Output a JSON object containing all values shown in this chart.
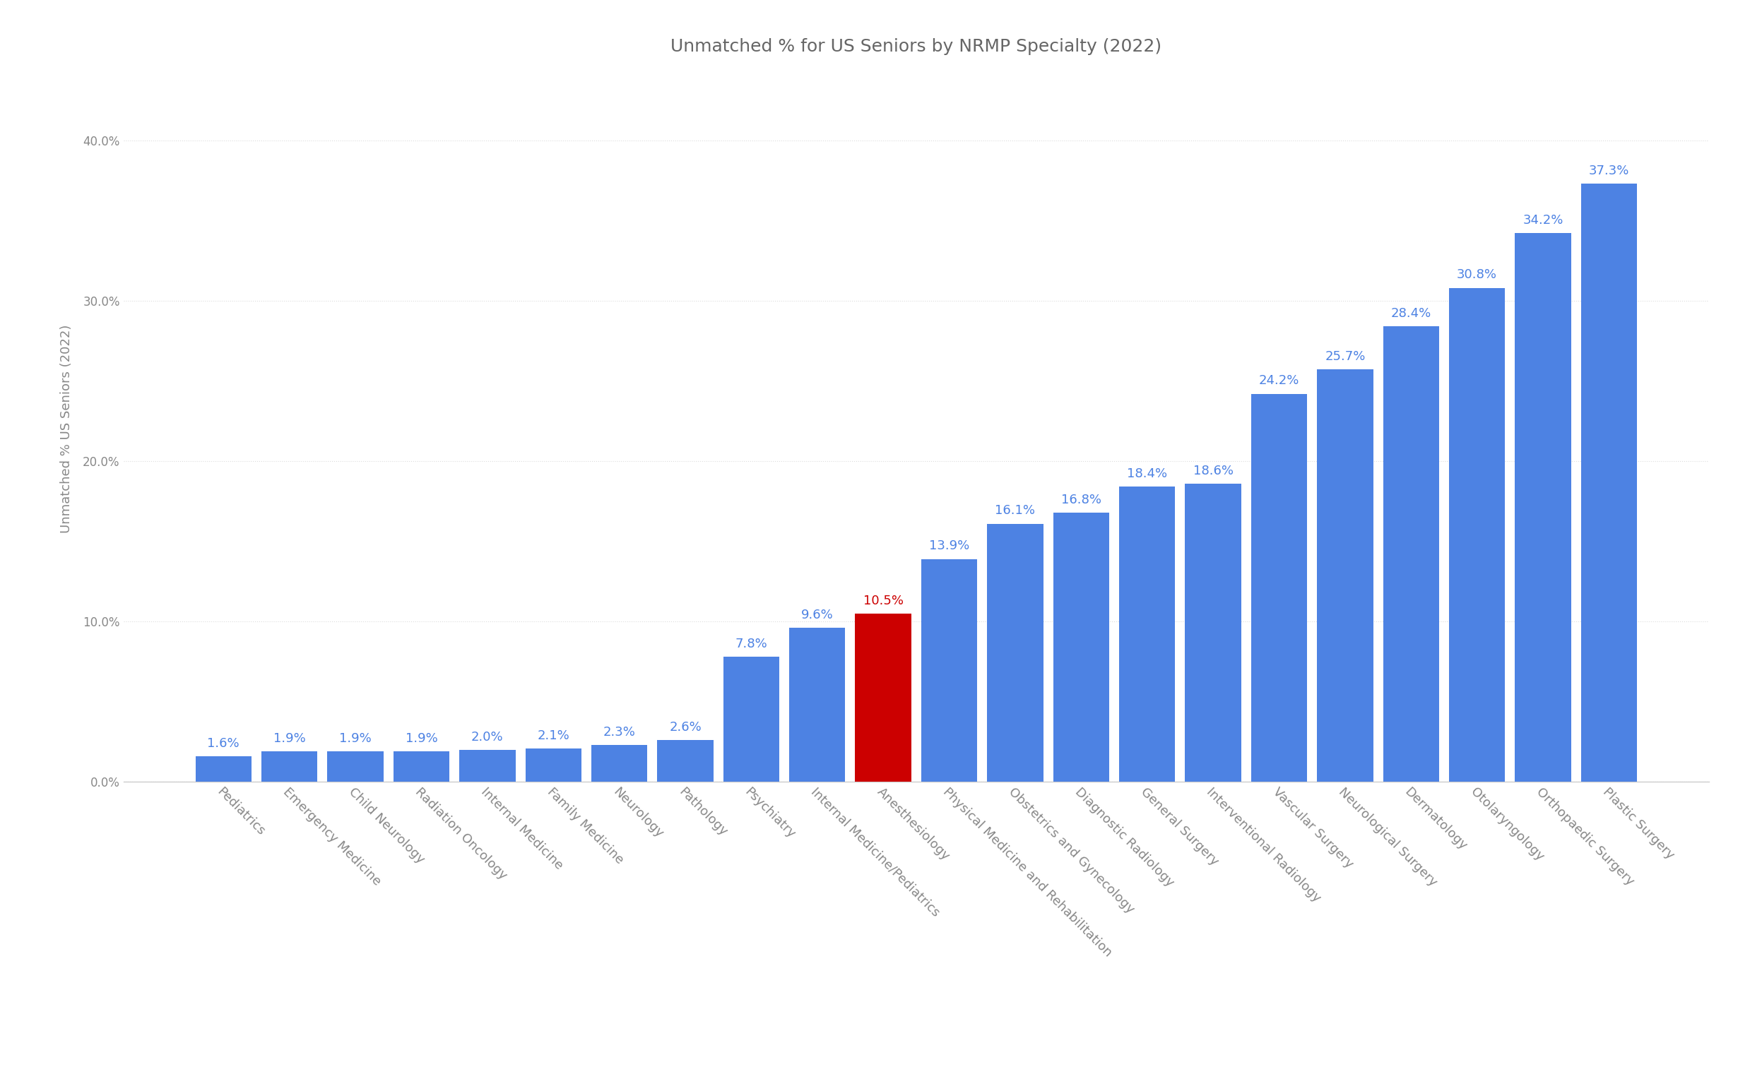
{
  "title": "Unmatched % for US Seniors by NRMP Specialty (2022)",
  "ylabel": "Unmatched % US Seniors (2022)",
  "categories": [
    "Pediatrics",
    "Emergency Medicine",
    "Child Neurology",
    "Radiation Oncology",
    "Internal Medicine",
    "Family Medicine",
    "Neurology",
    "Pathology",
    "Psychiatry",
    "Internal Medicine/Pediatrics",
    "Anesthesiology",
    "Physical Medicine and Rehabilitation",
    "Obstetrics and Gynecology",
    "Diagnostic Radiology",
    "General Surgery",
    "Interventional Radiology",
    "Vascular Surgery",
    "Neurological Surgery",
    "Dermatology",
    "Otolaryngology",
    "Orthopaedic Surgery",
    "Plastic Surgery"
  ],
  "values": [
    1.6,
    1.9,
    1.9,
    1.9,
    2.0,
    2.1,
    2.3,
    2.6,
    7.8,
    9.6,
    10.5,
    13.9,
    16.1,
    16.8,
    18.4,
    18.6,
    24.2,
    25.7,
    28.4,
    30.8,
    34.2,
    37.3
  ],
  "bar_colors": [
    "#4D82E3",
    "#4D82E3",
    "#4D82E3",
    "#4D82E3",
    "#4D82E3",
    "#4D82E3",
    "#4D82E3",
    "#4D82E3",
    "#4D82E3",
    "#4D82E3",
    "#CC0000",
    "#4D82E3",
    "#4D82E3",
    "#4D82E3",
    "#4D82E3",
    "#4D82E3",
    "#4D82E3",
    "#4D82E3",
    "#4D82E3",
    "#4D82E3",
    "#4D82E3",
    "#4D82E3"
  ],
  "label_colors": [
    "#4D82E3",
    "#4D82E3",
    "#4D82E3",
    "#4D82E3",
    "#4D82E3",
    "#4D82E3",
    "#4D82E3",
    "#4D82E3",
    "#4D82E3",
    "#4D82E3",
    "#CC0000",
    "#4D82E3",
    "#4D82E3",
    "#4D82E3",
    "#4D82E3",
    "#4D82E3",
    "#4D82E3",
    "#4D82E3",
    "#4D82E3",
    "#4D82E3",
    "#4D82E3",
    "#4D82E3"
  ],
  "bar_width": 0.85,
  "ylim": [
    0,
    44
  ],
  "yticks": [
    0.0,
    10.0,
    20.0,
    30.0,
    40.0
  ],
  "ytick_labels": [
    "0.0%",
    "10.0%",
    "20.0%",
    "30.0%",
    "40.0%"
  ],
  "background_color": "#ffffff",
  "grid_color": "#dddddd",
  "title_color": "#666666",
  "label_fontsize": 13,
  "title_fontsize": 18,
  "ylabel_fontsize": 13,
  "tick_label_fontsize": 12,
  "xtick_fontsize": 13
}
